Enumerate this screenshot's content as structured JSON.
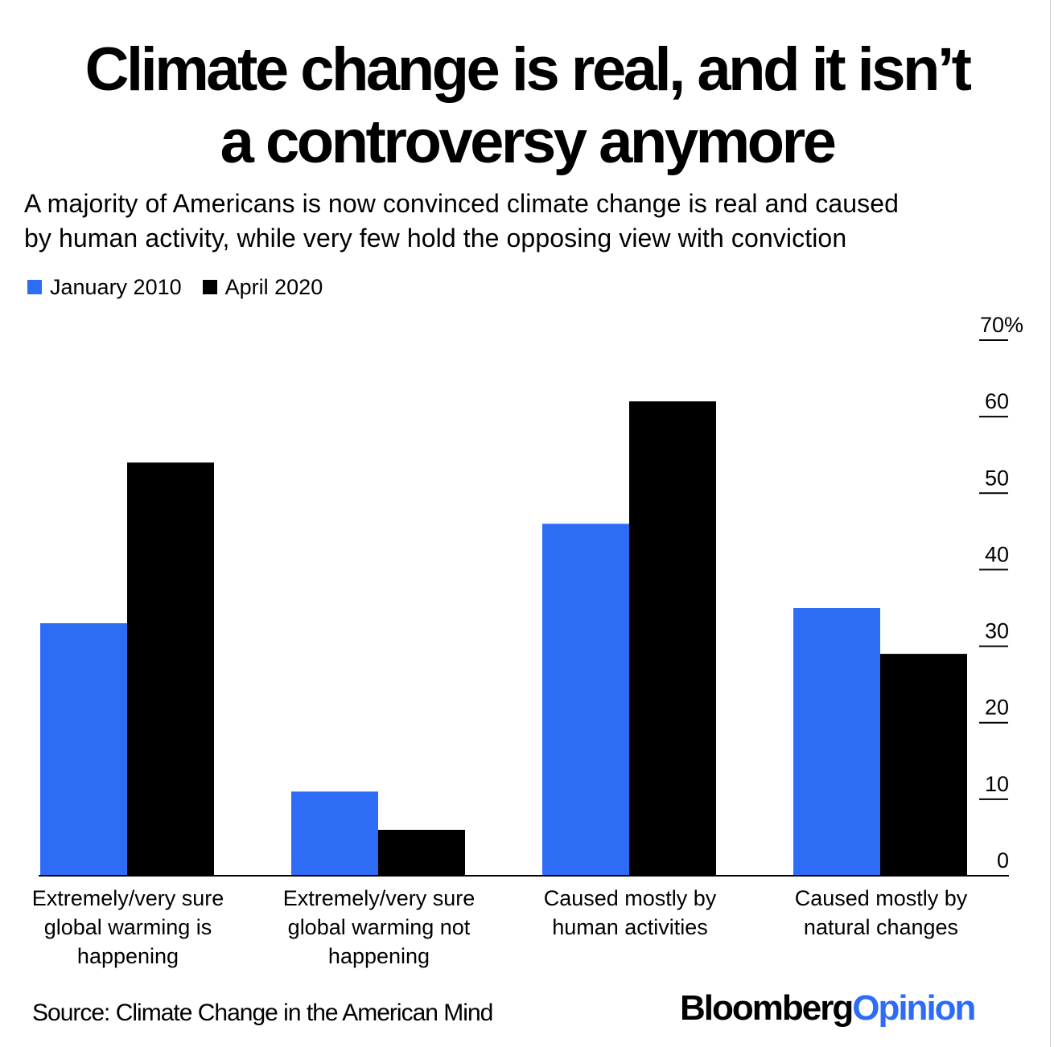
{
  "title_lines": [
    "Climate change is real, and it isn’t",
    "a controversy anymore"
  ],
  "subtitle_lines": [
    "A majority of Americans is now convinced climate change is real and caused",
    "by human activity, while very few hold the opposing view with conviction"
  ],
  "source": "Source: Climate Change in the American Mind",
  "brand": {
    "part1": "Bloomberg",
    "part2": "Opinion"
  },
  "colors": {
    "series1": "#2e6cf6",
    "series2": "#000000",
    "brand_accent": "#2e6cf6"
  },
  "chart_data": {
    "type": "bar",
    "title": "Climate change is real, and it isn’t a controversy anymore",
    "subtitle": "A majority of Americans is now convinced climate change is real and caused by human activity, while very few hold the opposing view with conviction",
    "categories": [
      "Extremely/very sure global warming is happening",
      "Extremely/very sure global warming not happening",
      "Caused mostly by human activities",
      "Caused mostly by natural changes"
    ],
    "category_label_lines": [
      [
        "Extremely/very sure",
        "global warming is",
        "happening"
      ],
      [
        "Extremely/very sure",
        "global warming not",
        "happening"
      ],
      [
        "Caused mostly by",
        "human activities"
      ],
      [
        "Caused mostly by",
        "natural changes"
      ]
    ],
    "series": [
      {
        "name": "January 2010",
        "values": [
          33,
          11,
          46,
          35
        ]
      },
      {
        "name": "April 2020",
        "values": [
          54,
          6,
          62,
          29
        ]
      }
    ],
    "y_ticks": [
      "0",
      "10",
      "20",
      "30",
      "40",
      "50",
      "60",
      "70%"
    ],
    "y_tick_values": [
      0,
      10,
      20,
      30,
      40,
      50,
      60,
      70
    ],
    "ylim": [
      0,
      70
    ],
    "y_axis_side": "right",
    "legend_position": "top-left",
    "grid": false
  }
}
